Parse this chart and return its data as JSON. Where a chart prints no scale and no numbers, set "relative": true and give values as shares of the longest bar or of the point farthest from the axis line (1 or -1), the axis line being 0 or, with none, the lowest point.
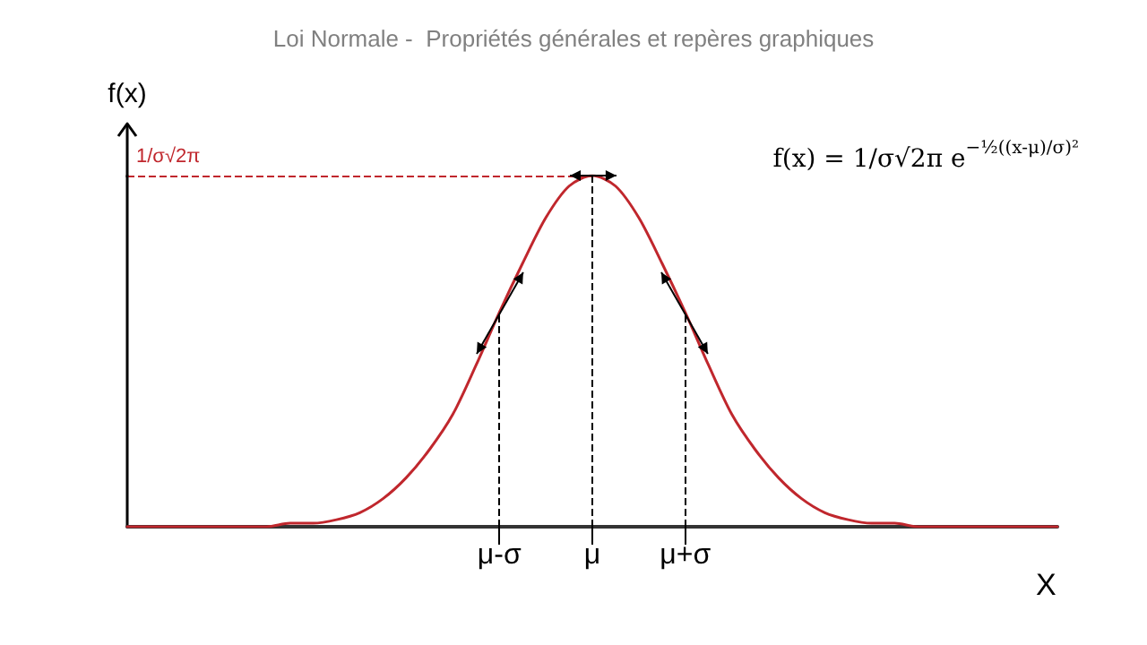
{
  "chart_data": {
    "type": "line",
    "title": "Loi Normale -  Propriétés générales et repères graphiques",
    "xlabel": "X",
    "ylabel": "f(x)",
    "relative": true,
    "categories": [
      null,
      null,
      null,
      null,
      null,
      null,
      null,
      null,
      null,
      null,
      null,
      null,
      null,
      null,
      null,
      null,
      "μ-σ",
      null,
      null,
      null,
      "μ",
      null,
      null,
      null,
      "μ+σ",
      null,
      null,
      null,
      null,
      null,
      null,
      null,
      null,
      null,
      null,
      null,
      null,
      null,
      null,
      null,
      null
    ],
    "series": [
      {
        "color": "#c0272d",
        "values": [
          0,
          0,
          0,
          0,
          0,
          0,
          0,
          0.01,
          0.01,
          0.02,
          0.04,
          0.08,
          0.14,
          0.22,
          0.32,
          0.46,
          0.61,
          0.75,
          0.88,
          0.97,
          1,
          0.97,
          0.88,
          0.75,
          0.61,
          0.46,
          0.32,
          0.22,
          0.14,
          0.08,
          0.04,
          0.02,
          0.01,
          0.01,
          0,
          0,
          0,
          0,
          0,
          0,
          0
        ]
      }
    ],
    "ref_lines": [
      {
        "axis": "y",
        "value": 1,
        "label": "1/σ√2π",
        "color": "#c0272d",
        "line_style": "dashed"
      },
      {
        "axis": "x",
        "value": "μ-σ",
        "color": "#000000",
        "line_style": "dashed"
      },
      {
        "axis": "x",
        "value": "μ",
        "color": "#000000",
        "line_style": "dashed"
      },
      {
        "axis": "x",
        "value": "μ+σ",
        "color": "#000000",
        "line_style": "dashed"
      }
    ],
    "annotations": [
      "f(x) = 1/σ√2π e$^{−½((x-μ)/σ)²}$"
    ],
    "grid": false,
    "marker": "none",
    "line_style": "solid"
  }
}
